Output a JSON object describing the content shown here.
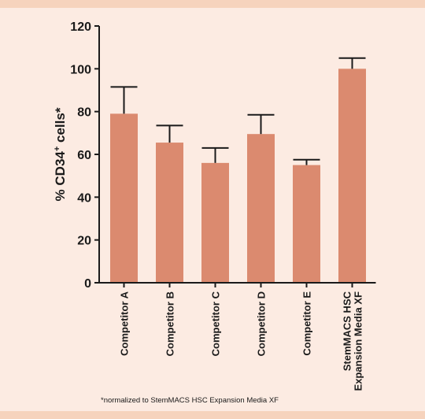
{
  "colors": {
    "background": "#fcebe2",
    "band": "#f6d3bd",
    "bar": "#db8a6f",
    "axis": "#1a1a1a"
  },
  "chart_data": {
    "type": "bar",
    "title": "",
    "xlabel": "",
    "ylabel": "% CD34+ cells*",
    "ylabel_base": "% CD34",
    "ylabel_sup": "+",
    "ylabel_tail": " cells*",
    "ylim": [
      0,
      120
    ],
    "yticks": [
      0,
      20,
      40,
      60,
      80,
      100,
      120
    ],
    "grid": false,
    "legend": "none",
    "categories": [
      [
        "Competitor A"
      ],
      [
        "Competitor B"
      ],
      [
        "Competitor C"
      ],
      [
        "Competitor D"
      ],
      [
        "Competitor E"
      ],
      [
        "StemMACS HSC",
        "Expansion Media XF"
      ]
    ],
    "values": [
      79,
      65.5,
      56,
      69.5,
      55,
      100
    ],
    "error_upper": [
      91.5,
      73.5,
      63,
      78.5,
      57.5,
      105
    ],
    "footnote": "*normalized to StemMACS HSC Expansion Media XF"
  }
}
